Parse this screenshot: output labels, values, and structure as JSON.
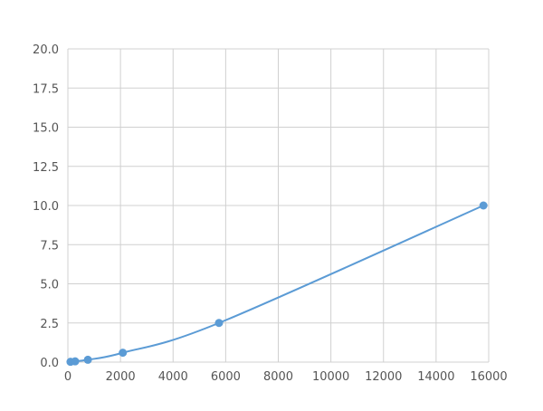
{
  "chart_data": {
    "type": "line",
    "title": "",
    "xlabel": "",
    "ylabel": "",
    "xlim": [
      0,
      16000
    ],
    "ylim": [
      0,
      20
    ],
    "xticks": [
      0,
      2000,
      4000,
      6000,
      8000,
      10000,
      12000,
      14000,
      16000
    ],
    "yticks": [
      "0.0",
      "2.5",
      "5.0",
      "7.5",
      "10.0",
      "12.5",
      "15.0",
      "17.5",
      "20.0"
    ],
    "grid": true,
    "legend": "none",
    "color": "#5b9bd5",
    "series": [
      {
        "x": [
          100,
          276,
          760,
          2089,
          5745,
          15800
        ],
        "y": [
          0.02,
          0.05,
          0.15,
          0.6,
          2.5,
          10.0
        ],
        "smooth": true,
        "markers": true
      }
    ]
  }
}
